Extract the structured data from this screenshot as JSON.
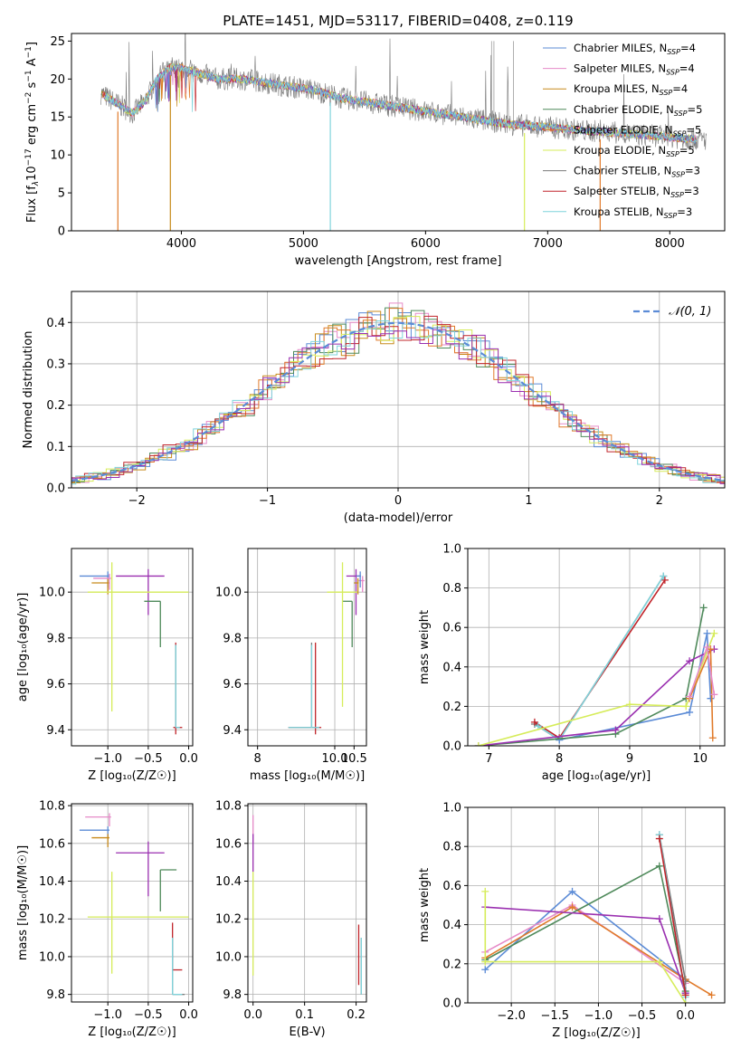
{
  "colors": {
    "chabrier_miles": "#5b8bd6",
    "salpeter_miles": "#e68ac8",
    "kroupa_miles": "#c88a1a",
    "chabrier_elodie": "#4f8a5b",
    "salpeter_elodie": "#e07a2a",
    "kroupa_elodie": "#d6ec5a",
    "chabrier_stelib": "#7a7a7a",
    "salpeter_stelib": "#c0242a",
    "kroupa_stelib": "#7fd4dc",
    "purple": "#9a2fb0",
    "normal_line": "#5b8bd6",
    "grid": "#b0b0b0"
  },
  "chart_data": [
    {
      "id": "spectrum",
      "type": "line",
      "title": "PLATE=1451, MJD=53117, FIBERID=0408, z=0.119",
      "xlabel": "wavelength [Angstrom, rest frame]",
      "ylabel_parts": [
        "Flux [f",
        "λ",
        "10",
        "−17",
        " erg cm",
        "−2",
        " s",
        "−1",
        " A",
        "−1",
        "]"
      ],
      "xlim": [
        3100,
        8450
      ],
      "ylim": [
        0,
        26
      ],
      "xticks": [
        4000,
        5000,
        6000,
        7000,
        8000
      ],
      "yticks": [
        0,
        5,
        10,
        15,
        20,
        25
      ],
      "grid": false,
      "legend_position": "top-right",
      "series": [
        {
          "name": "Chabrier MILES, N",
          "sub": "SSP",
          "suffix": "=4",
          "color_key": "chabrier_miles"
        },
        {
          "name": "Salpeter MILES, N",
          "sub": "SSP",
          "suffix": "=4",
          "color_key": "salpeter_miles"
        },
        {
          "name": "Kroupa MILES, N",
          "sub": "SSP",
          "suffix": "=4",
          "color_key": "kroupa_miles"
        },
        {
          "name": "Chabrier ELODIE, N",
          "sub": "SSP",
          "suffix": "=5",
          "color_key": "chabrier_elodie"
        },
        {
          "name": "Salpeter ELODIE, N",
          "sub": "SSP",
          "suffix": "=5",
          "color_key": "salpeter_elodie"
        },
        {
          "name": "Kroupa ELODIE, N",
          "sub": "SSP",
          "suffix": "=5",
          "color_key": "kroupa_elodie"
        },
        {
          "name": "Chabrier STELIB, N",
          "sub": "SSP",
          "suffix": "=3",
          "color_key": "chabrier_stelib"
        },
        {
          "name": "Salpeter STELIB, N",
          "sub": "SSP",
          "suffix": "=3",
          "color_key": "salpeter_stelib"
        },
        {
          "name": "Kroupa STELIB, N",
          "sub": "SSP",
          "suffix": "=3",
          "color_key": "kroupa_stelib"
        }
      ],
      "continuum": {
        "x": [
          3300,
          3500,
          3600,
          3700,
          3800,
          3900,
          4000,
          4100,
          4300,
          4500,
          4700,
          4900,
          5100,
          5300,
          5500,
          5700,
          5900,
          6100,
          6300,
          6500,
          6700,
          6900,
          7100,
          7300,
          7500,
          7700,
          7900,
          8100,
          8300
        ],
        "y": [
          18.5,
          16.5,
          15.5,
          17.0,
          20.0,
          21.5,
          21.5,
          21.0,
          20.0,
          20.0,
          19.5,
          19.0,
          18.5,
          17.5,
          17.0,
          16.5,
          16.0,
          15.5,
          15.0,
          14.5,
          14.0,
          13.8,
          13.5,
          13.2,
          13.0,
          12.7,
          12.5,
          12.2,
          12.0
        ]
      },
      "dropouts": [
        3480,
        3910,
        5220,
        6810,
        7430
      ]
    },
    {
      "id": "residuals",
      "type": "line",
      "xlabel": "(data-model)/error",
      "ylabel": "Normed distribution",
      "xlim": [
        -2.5,
        2.5
      ],
      "ylim": [
        0,
        0.475
      ],
      "xticks": [
        -2,
        -1,
        0,
        1,
        2
      ],
      "yticks": [
        0.0,
        0.1,
        0.2,
        0.3,
        0.4
      ],
      "grid": true,
      "legend": [
        "𝒩(0, 1)"
      ],
      "legend_position": "top-right",
      "normal": {
        "mean": 0,
        "sigma": 1
      }
    },
    {
      "id": "age-vs-z",
      "type": "scatter",
      "xlabel": "Z [log₁₀(Z/Z☉)]",
      "ylabel": "age  [log₁₀(age/yr)]",
      "xlim": [
        -1.45,
        0.05
      ],
      "ylim": [
        9.33,
        10.19
      ],
      "xticks": [
        -1.0,
        -0.5,
        0.0
      ],
      "yticks": [
        9.4,
        9.6,
        9.8,
        10.0
      ],
      "grid": true,
      "points": [
        {
          "color_key": "chabrier_miles",
          "x": -1.0,
          "xerr": [
            0.35,
            0.02
          ],
          "y": 10.07,
          "yerr": [
            0.05,
            0.02
          ]
        },
        {
          "color_key": "kroupa_miles",
          "x": -1.0,
          "xerr": [
            0.2,
            0.02
          ],
          "y": 10.04,
          "yerr": [
            0.05,
            0.02
          ]
        },
        {
          "color_key": "salpeter_miles",
          "x": -0.98,
          "xerr": [
            0.2,
            0.02
          ],
          "y": 10.06,
          "yerr": [
            0.05,
            0.02
          ]
        },
        {
          "color_key": "purple",
          "x": -0.5,
          "xerr": [
            0.4,
            0.2
          ],
          "y": 10.07,
          "yerr": [
            0.17,
            0.03
          ]
        },
        {
          "color_key": "chabrier_elodie",
          "x": -0.35,
          "xerr": [
            0.2,
            0.0
          ],
          "y": 9.96,
          "yerr": [
            0.2,
            0.0
          ]
        },
        {
          "color_key": "kroupa_elodie",
          "x": -0.95,
          "xerr": [
            0.3,
            0.95
          ],
          "y": 10.0,
          "yerr": [
            0.52,
            0.13
          ]
        },
        {
          "color_key": "salpeter_stelib",
          "x": -0.16,
          "xerr": [
            0.03,
            0.08
          ],
          "y": 9.41,
          "yerr": [
            0.03,
            0.37
          ]
        },
        {
          "color_key": "chabrier_stelib",
          "x": -0.16,
          "xerr": [
            0.0,
            0.05
          ],
          "y": 9.41,
          "yerr": [
            0.0,
            0.36
          ]
        },
        {
          "color_key": "kroupa_stelib",
          "x": -0.16,
          "xerr": [
            0.0,
            0.05
          ],
          "y": 9.41,
          "yerr": [
            0.0,
            0.36
          ]
        }
      ]
    },
    {
      "id": "age-vs-mass",
      "type": "scatter",
      "xlabel": "mass [log₁₀(M/M☉)]",
      "ylabel": "",
      "xlim": [
        7.75,
        10.82
      ],
      "ylim": [
        9.33,
        10.19
      ],
      "xticks": [
        8,
        10.0,
        10.5
      ],
      "yticks": [
        9.4,
        9.6,
        9.8,
        10.0
      ],
      "grid": true,
      "points": [
        {
          "color_key": "purple",
          "x": 10.55,
          "xerr": [
            0.25,
            0.1
          ],
          "y": 10.07,
          "yerr": [
            0.17,
            0.03
          ]
        },
        {
          "color_key": "chabrier_elodie",
          "x": 10.45,
          "xerr": [
            0.25,
            0.0
          ],
          "y": 9.96,
          "yerr": [
            0.2,
            0.0
          ]
        },
        {
          "color_key": "kroupa_elodie",
          "x": 10.2,
          "xerr": [
            0.4,
            0.4
          ],
          "y": 10.0,
          "yerr": [
            0.5,
            0.13
          ]
        },
        {
          "color_key": "salpeter_miles",
          "x": 10.72,
          "xerr": [
            0.1,
            0.05
          ],
          "y": 10.05,
          "yerr": [
            0.05,
            0.02
          ]
        },
        {
          "color_key": "chabrier_miles",
          "x": 10.66,
          "xerr": [
            0.1,
            0.02
          ],
          "y": 10.07,
          "yerr": [
            0.05,
            0.02
          ]
        },
        {
          "color_key": "kroupa_miles",
          "x": 10.6,
          "xerr": [
            0.1,
            0.02
          ],
          "y": 10.04,
          "yerr": [
            0.05,
            0.02
          ]
        },
        {
          "color_key": "salpeter_stelib",
          "x": 9.5,
          "xerr": [
            0.7,
            0.15
          ],
          "y": 9.41,
          "yerr": [
            0.03,
            0.37
          ]
        },
        {
          "color_key": "chabrier_stelib",
          "x": 9.4,
          "xerr": [
            0.6,
            0.2
          ],
          "y": 9.41,
          "yerr": [
            0.0,
            0.37
          ]
        },
        {
          "color_key": "kroupa_stelib",
          "x": 9.4,
          "xerr": [
            0.6,
            0.2
          ],
          "y": 9.41,
          "yerr": [
            0.0,
            0.36
          ]
        }
      ]
    },
    {
      "id": "weight-vs-age",
      "type": "line",
      "xlabel": "age  [log₁₀(age/yr)]",
      "ylabel": "mass weight",
      "xlim": [
        6.7,
        10.35
      ],
      "ylim": [
        0,
        1.0
      ],
      "xticks": [
        7,
        8,
        9,
        10
      ],
      "yticks": [
        0.0,
        0.2,
        0.4,
        0.6,
        0.8,
        1.0
      ],
      "grid": true,
      "series": [
        {
          "color_key": "chabrier_stelib",
          "x": [
            7.65,
            8.0,
            9.48
          ],
          "y": [
            0.11,
            0.03,
            0.86
          ]
        },
        {
          "color_key": "salpeter_stelib",
          "x": [
            7.65,
            8.0,
            9.5
          ],
          "y": [
            0.12,
            0.04,
            0.84
          ]
        },
        {
          "color_key": "kroupa_stelib",
          "x": [
            7.7,
            8.0,
            9.48
          ],
          "y": [
            0.1,
            0.03,
            0.86
          ]
        },
        {
          "color_key": "chabrier_miles",
          "x": [
            8.0,
            9.85,
            10.1,
            10.15
          ],
          "y": [
            0.03,
            0.17,
            0.57,
            0.24
          ]
        },
        {
          "color_key": "chabrier_elodie",
          "x": [
            6.85,
            8.8,
            9.8,
            10.05
          ],
          "y": [
            0.0,
            0.06,
            0.24,
            0.7
          ]
        },
        {
          "color_key": "purple",
          "x": [
            6.85,
            8.8,
            9.85,
            10.2
          ],
          "y": [
            0.0,
            0.08,
            0.43,
            0.49
          ]
        },
        {
          "color_key": "kroupa_elodie",
          "x": [
            6.85,
            9.0,
            9.8,
            10.2
          ],
          "y": [
            0.0,
            0.21,
            0.2,
            0.57
          ]
        },
        {
          "color_key": "salpeter_elodie",
          "x": [
            9.85,
            10.15,
            10.18
          ],
          "y": [
            0.24,
            0.49,
            0.04
          ]
        },
        {
          "color_key": "salpeter_miles",
          "x": [
            9.85,
            10.1,
            10.2
          ],
          "y": [
            0.25,
            0.5,
            0.26
          ]
        }
      ]
    },
    {
      "id": "mass-vs-z",
      "type": "scatter",
      "xlabel": "Z [log₁₀(Z/Z☉)]",
      "ylabel": "mass [log₁₀(M/M☉)]",
      "xlim": [
        -1.45,
        0.05
      ],
      "ylim": [
        9.76,
        10.81
      ],
      "xticks": [
        -1.0,
        -0.5,
        0.0
      ],
      "yticks": [
        9.8,
        10.0,
        10.2,
        10.4,
        10.6,
        10.8
      ],
      "grid": true,
      "points": [
        {
          "color_key": "salpeter_miles",
          "x": -0.98,
          "xerr": [
            0.3,
            0.02
          ],
          "y": 10.74,
          "yerr": [
            0.05,
            0.02
          ]
        },
        {
          "color_key": "chabrier_miles",
          "x": -1.0,
          "xerr": [
            0.35,
            0.02
          ],
          "y": 10.67,
          "yerr": [
            0.05,
            0.02
          ]
        },
        {
          "color_key": "kroupa_miles",
          "x": -1.0,
          "xerr": [
            0.2,
            0.02
          ],
          "y": 10.63,
          "yerr": [
            0.05,
            0.02
          ]
        },
        {
          "color_key": "purple",
          "x": -0.5,
          "xerr": [
            0.4,
            0.2
          ],
          "y": 10.55,
          "yerr": [
            0.23,
            0.06
          ]
        },
        {
          "color_key": "chabrier_elodie",
          "x": -0.35,
          "xerr": [
            0.0,
            0.2
          ],
          "y": 10.46,
          "yerr": [
            0.22,
            0.0
          ]
        },
        {
          "color_key": "kroupa_elodie",
          "x": -0.95,
          "xerr": [
            0.3,
            0.95
          ],
          "y": 10.21,
          "yerr": [
            0.3,
            0.24
          ]
        },
        {
          "color_key": "salpeter_stelib",
          "x": -0.2,
          "xerr": [
            0.0,
            0.12
          ],
          "y": 9.93,
          "yerr": [
            0.0,
            0.25
          ]
        },
        {
          "color_key": "chabrier_stelib",
          "x": -0.2,
          "xerr": [
            0.0,
            0.15
          ],
          "y": 9.8,
          "yerr": [
            0.0,
            0.3
          ]
        },
        {
          "color_key": "kroupa_stelib",
          "x": -0.2,
          "xerr": [
            0.0,
            0.12
          ],
          "y": 9.8,
          "yerr": [
            0.0,
            0.3
          ]
        }
      ]
    },
    {
      "id": "mass-vs-ebv",
      "type": "scatter",
      "xlabel": "E(B-V)",
      "ylabel": "",
      "xlim": [
        -0.01,
        0.22
      ],
      "ylim": [
        9.76,
        10.81
      ],
      "xticks": [
        0.0,
        0.1,
        0.2
      ],
      "yticks": [
        9.8,
        10.0,
        10.2,
        10.4,
        10.6,
        10.8
      ],
      "grid": true,
      "points": [
        {
          "color_key": "salpeter_miles",
          "x": 0.0,
          "xerr": [
            0.0,
            0.0
          ],
          "y": 10.7,
          "yerr": [
            0.1,
            0.05
          ]
        },
        {
          "color_key": "purple",
          "x": 0.0,
          "xerr": [
            0.0,
            0.0
          ],
          "y": 10.55,
          "yerr": [
            0.1,
            0.1
          ]
        },
        {
          "color_key": "kroupa_elodie",
          "x": 0.0,
          "xerr": [
            0.0,
            0.0
          ],
          "y": 10.2,
          "yerr": [
            0.3,
            0.25
          ]
        },
        {
          "color_key": "salpeter_stelib",
          "x": 0.205,
          "xerr": [
            0.0,
            0.0
          ],
          "y": 10.0,
          "yerr": [
            0.15,
            0.17
          ]
        },
        {
          "color_key": "chabrier_stelib",
          "x": 0.21,
          "xerr": [
            0.0,
            0.0
          ],
          "y": 9.9,
          "yerr": [
            0.1,
            0.2
          ]
        },
        {
          "color_key": "kroupa_stelib",
          "x": 0.21,
          "xerr": [
            0.0,
            0.0
          ],
          "y": 9.9,
          "yerr": [
            0.1,
            0.2
          ]
        }
      ]
    },
    {
      "id": "weight-vs-z",
      "type": "line",
      "xlabel": "Z [log₁₀(Z/Z☉)]",
      "ylabel": "mass weight",
      "xlim": [
        -2.5,
        0.45
      ],
      "ylim": [
        0,
        1.0
      ],
      "xticks": [
        -2.0,
        -1.5,
        -1.0,
        -0.5,
        0.0
      ],
      "yticks": [
        0.0,
        0.2,
        0.4,
        0.6,
        0.8,
        1.0
      ],
      "grid": true,
      "series": [
        {
          "color_key": "chabrier_miles",
          "x": [
            -2.3,
            -1.3,
            0.0,
            0.0
          ],
          "y": [
            0.17,
            0.57,
            0.12,
            0.05
          ]
        },
        {
          "color_key": "salpeter_miles",
          "x": [
            -2.3,
            -1.3,
            0.0
          ],
          "y": [
            0.26,
            0.5,
            0.1
          ]
        },
        {
          "color_key": "salpeter_elodie",
          "x": [
            -2.3,
            -1.3,
            0.0,
            0.3
          ],
          "y": [
            0.23,
            0.49,
            0.12,
            0.04
          ]
        },
        {
          "color_key": "chabrier_elodie",
          "x": [
            -2.3,
            -0.3,
            0.0
          ],
          "y": [
            0.22,
            0.7,
            0.06
          ]
        },
        {
          "color_key": "purple",
          "x": [
            -2.3,
            -0.3,
            0.0
          ],
          "y": [
            0.49,
            0.43,
            0.05
          ]
        },
        {
          "color_key": "kroupa_elodie",
          "x": [
            -2.3,
            -2.3,
            -0.3,
            0.0
          ],
          "y": [
            0.57,
            0.21,
            0.21,
            0.0
          ]
        },
        {
          "color_key": "chabrier_stelib",
          "x": [
            -0.3,
            0.0
          ],
          "y": [
            0.86,
            0.11
          ]
        },
        {
          "color_key": "kroupa_stelib",
          "x": [
            -0.3,
            0.0
          ],
          "y": [
            0.86,
            0.03
          ]
        },
        {
          "color_key": "salpeter_stelib",
          "x": [
            -0.3,
            0.0
          ],
          "y": [
            0.84,
            0.04
          ]
        }
      ]
    }
  ]
}
